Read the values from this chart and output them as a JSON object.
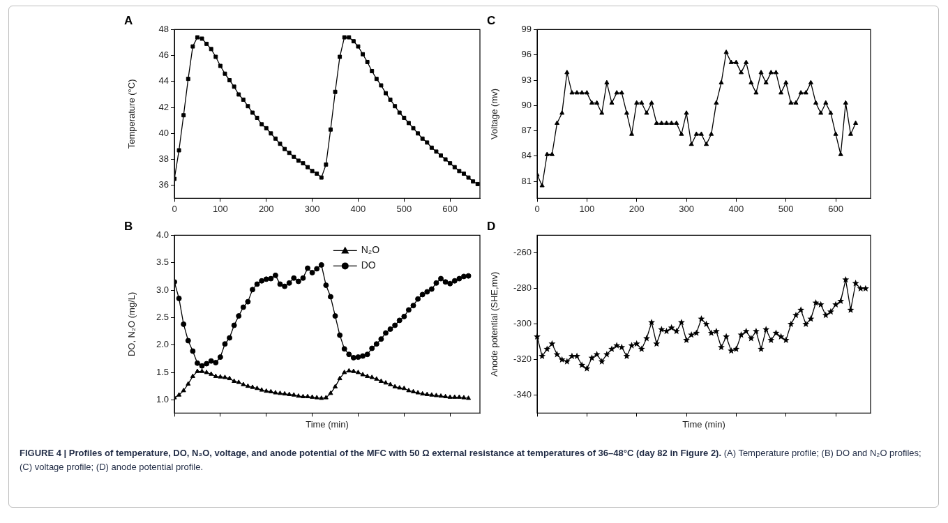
{
  "chart_data": [
    {
      "type": "line",
      "title": "A",
      "ylabel": "Temperature (°C)",
      "marker": "square",
      "grid": false,
      "xlim": [
        0,
        665
      ],
      "xticks": [
        0,
        100,
        200,
        300,
        400,
        500,
        600
      ],
      "ylim": [
        35,
        48
      ],
      "yticks": [
        36,
        38,
        40,
        42,
        44,
        46,
        48
      ],
      "color": "#000000",
      "x": [
        0,
        10,
        20,
        30,
        40,
        50,
        60,
        70,
        80,
        90,
        100,
        110,
        120,
        130,
        140,
        150,
        160,
        170,
        180,
        190,
        200,
        210,
        220,
        230,
        240,
        250,
        260,
        270,
        280,
        290,
        300,
        310,
        320,
        330,
        340,
        350,
        360,
        370,
        380,
        390,
        400,
        410,
        420,
        430,
        440,
        450,
        460,
        470,
        480,
        490,
        500,
        510,
        520,
        530,
        540,
        550,
        560,
        570,
        580,
        590,
        600,
        610,
        620,
        630,
        640,
        650,
        660
      ],
      "values": [
        36.5,
        38.7,
        41.4,
        44.2,
        46.7,
        47.4,
        47.3,
        46.9,
        46.5,
        45.9,
        45.2,
        44.6,
        44.1,
        43.6,
        43.0,
        42.6,
        42.1,
        41.6,
        41.2,
        40.7,
        40.4,
        40.0,
        39.6,
        39.2,
        38.8,
        38.5,
        38.2,
        37.9,
        37.7,
        37.4,
        37.1,
        36.9,
        36.6,
        37.6,
        40.3,
        43.2,
        45.9,
        47.4,
        47.4,
        47.1,
        46.7,
        46.1,
        45.5,
        44.8,
        44.2,
        43.7,
        43.1,
        42.6,
        42.1,
        41.6,
        41.2,
        40.8,
        40.4,
        40.0,
        39.6,
        39.3,
        38.9,
        38.6,
        38.3,
        38.0,
        37.7,
        37.4,
        37.1,
        36.9,
        36.6,
        36.3,
        36.1
      ]
    },
    {
      "type": "line",
      "title": "B",
      "xlabel": "Time (min)",
      "ylabel": "DO, N₂O (mg/L)",
      "grid": false,
      "legend": "top",
      "tick_labels": "y",
      "xlim": [
        0,
        665
      ],
      "xticks": [
        0,
        100,
        200,
        300,
        400,
        500,
        600
      ],
      "ylim": [
        0.76,
        4.0
      ],
      "yticks": [
        {
          "value": 1,
          "label": "1.0"
        },
        1.5,
        {
          "value": 2,
          "label": "2.0"
        },
        2.5,
        {
          "value": 3,
          "label": "3.0"
        },
        3.5,
        {
          "value": 4,
          "label": "4.0"
        }
      ],
      "x": [
        0,
        10,
        20,
        30,
        40,
        50,
        60,
        70,
        80,
        90,
        100,
        110,
        120,
        130,
        140,
        150,
        160,
        170,
        180,
        190,
        200,
        210,
        220,
        230,
        240,
        250,
        260,
        270,
        280,
        290,
        300,
        310,
        320,
        330,
        340,
        350,
        360,
        370,
        380,
        390,
        400,
        410,
        420,
        430,
        440,
        450,
        460,
        470,
        480,
        490,
        500,
        510,
        520,
        530,
        540,
        550,
        560,
        570,
        580,
        590,
        600,
        610,
        620,
        630,
        640
      ],
      "series": [
        {
          "name": "N₂O",
          "color": "#000000",
          "marker": "triangle",
          "values": [
            1.04,
            1.09,
            1.17,
            1.29,
            1.43,
            1.52,
            1.52,
            1.5,
            1.47,
            1.43,
            1.42,
            1.41,
            1.39,
            1.34,
            1.32,
            1.28,
            1.25,
            1.23,
            1.21,
            1.18,
            1.16,
            1.15,
            1.13,
            1.12,
            1.11,
            1.1,
            1.09,
            1.07,
            1.06,
            1.06,
            1.05,
            1.04,
            1.03,
            1.04,
            1.12,
            1.24,
            1.39,
            1.5,
            1.53,
            1.52,
            1.5,
            1.46,
            1.43,
            1.41,
            1.38,
            1.34,
            1.31,
            1.28,
            1.24,
            1.22,
            1.21,
            1.17,
            1.15,
            1.13,
            1.11,
            1.1,
            1.09,
            1.08,
            1.07,
            1.06,
            1.05,
            1.05,
            1.05,
            1.04,
            1.03
          ]
        },
        {
          "name": "DO",
          "color": "#000000",
          "marker": "circle",
          "values": [
            3.15,
            2.85,
            2.38,
            2.08,
            1.89,
            1.67,
            1.62,
            1.66,
            1.71,
            1.68,
            1.78,
            2.02,
            2.13,
            2.36,
            2.53,
            2.69,
            2.79,
            3.01,
            3.11,
            3.17,
            3.2,
            3.21,
            3.27,
            3.11,
            3.07,
            3.13,
            3.22,
            3.16,
            3.22,
            3.4,
            3.32,
            3.39,
            3.46,
            3.09,
            2.88,
            2.53,
            2.18,
            1.93,
            1.83,
            1.77,
            1.78,
            1.8,
            1.83,
            1.94,
            2.02,
            2.11,
            2.22,
            2.29,
            2.36,
            2.45,
            2.52,
            2.64,
            2.72,
            2.84,
            2.92,
            2.97,
            3.02,
            3.13,
            3.21,
            3.15,
            3.12,
            3.17,
            3.21,
            3.25,
            3.26
          ]
        }
      ]
    },
    {
      "type": "line",
      "title": "C",
      "ylabel": "Voltage (mv)",
      "marker": "triangle",
      "grid": false,
      "xlim": [
        0,
        670
      ],
      "xticks": [
        0,
        100,
        200,
        300,
        400,
        500,
        600
      ],
      "ylim": [
        79,
        99
      ],
      "yticks": [
        81,
        84,
        87,
        90,
        93,
        96,
        99
      ],
      "color": "#000000",
      "x": [
        0,
        10,
        20,
        30,
        40,
        50,
        60,
        70,
        80,
        90,
        100,
        110,
        120,
        130,
        140,
        150,
        160,
        170,
        180,
        190,
        200,
        210,
        220,
        230,
        240,
        250,
        260,
        270,
        280,
        290,
        300,
        310,
        320,
        330,
        340,
        350,
        360,
        370,
        380,
        390,
        400,
        410,
        420,
        430,
        440,
        450,
        460,
        470,
        480,
        490,
        500,
        510,
        520,
        530,
        540,
        550,
        560,
        570,
        580,
        590,
        600,
        610,
        620,
        630,
        640
      ],
      "values": [
        81.8,
        80.5,
        84.2,
        84.2,
        87.9,
        89.1,
        93.9,
        91.5,
        91.5,
        91.5,
        91.5,
        90.3,
        90.3,
        89.1,
        92.7,
        90.3,
        91.5,
        91.5,
        89.1,
        86.6,
        90.3,
        90.3,
        89.1,
        90.3,
        87.9,
        87.9,
        87.9,
        87.9,
        87.9,
        86.6,
        89.1,
        85.4,
        86.6,
        86.6,
        85.4,
        86.6,
        90.3,
        92.7,
        96.3,
        95.1,
        95.1,
        93.9,
        95.1,
        92.7,
        91.5,
        93.9,
        92.7,
        93.9,
        93.9,
        91.5,
        92.7,
        90.3,
        90.3,
        91.5,
        91.5,
        92.7,
        90.3,
        89.1,
        90.3,
        89.1,
        86.6,
        84.2,
        90.3,
        86.6,
        87.9
      ]
    },
    {
      "type": "line",
      "title": "D",
      "xlabel": "Time (min)",
      "ylabel": "Anode potential (SHE,mv)",
      "marker": "star",
      "grid": false,
      "tick_labels": "y",
      "xlim": [
        0,
        670
      ],
      "xticks": [
        0,
        100,
        200,
        300,
        400,
        500,
        600
      ],
      "ylim": [
        -350,
        -250
      ],
      "yticks": [
        -340,
        -320,
        -300,
        -280,
        -260
      ],
      "color": "#000000",
      "x": [
        0,
        10,
        20,
        30,
        40,
        50,
        60,
        70,
        80,
        90,
        100,
        110,
        120,
        130,
        140,
        150,
        160,
        170,
        180,
        190,
        200,
        210,
        220,
        230,
        240,
        250,
        260,
        270,
        280,
        290,
        300,
        310,
        320,
        330,
        340,
        350,
        360,
        370,
        380,
        390,
        400,
        410,
        420,
        430,
        440,
        450,
        460,
        470,
        480,
        490,
        500,
        510,
        520,
        530,
        540,
        550,
        560,
        570,
        580,
        590,
        600,
        610,
        620,
        630,
        640,
        650,
        660
      ],
      "values": [
        -307,
        -318,
        -314,
        -311,
        -317,
        -320,
        -321,
        -318,
        -318,
        -323,
        -325,
        -319,
        -317,
        -321,
        -317,
        -314,
        -312,
        -313,
        -318,
        -312,
        -311,
        -314,
        -308,
        -299,
        -311,
        -303,
        -304,
        -302,
        -304,
        -299,
        -309,
        -306,
        -305,
        -297,
        -300,
        -305,
        -304,
        -313,
        -307,
        -315,
        -314,
        -306,
        -304,
        -308,
        -304,
        -314,
        -303,
        -309,
        -305,
        -307,
        -309,
        -300,
        -295,
        -292,
        -300,
        -297,
        -288,
        -289,
        -295,
        -293,
        -289,
        -287,
        -275,
        -292,
        -277,
        -280,
        -280
      ],
      "annotations": [
        "FIGURE 4 | Profiles of temperature, DO, N₂O, voltage, and anode potential of the MFC with 50 Ω external resistance at temperatures of 36–48°C (day 82 in Figure 2).",
        "(A) Temperature profile; (B) DO and N₂O profiles; (C) voltage profile; (D) anode potential profile."
      ]
    }
  ]
}
